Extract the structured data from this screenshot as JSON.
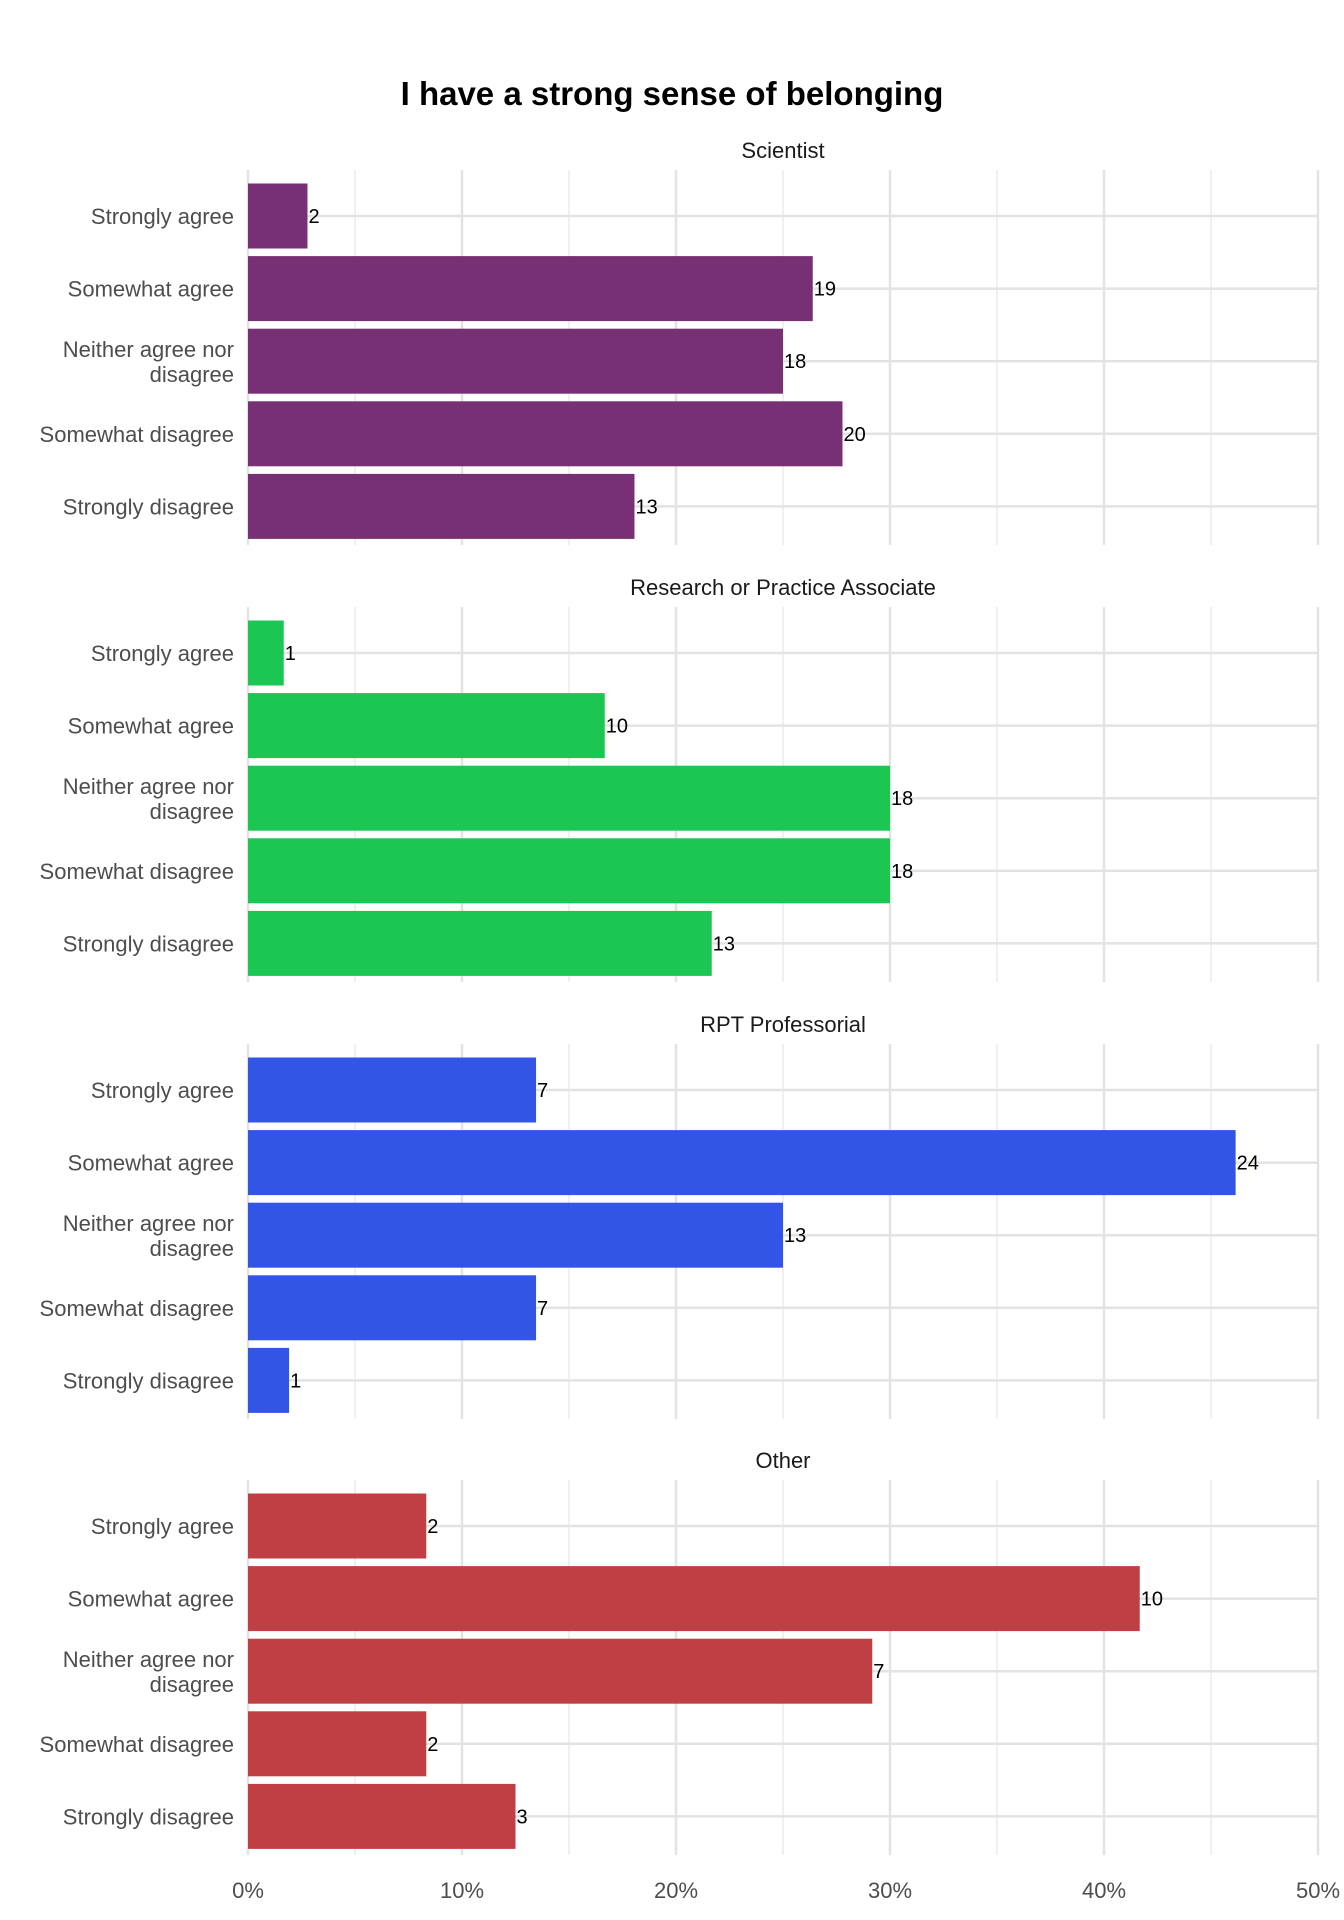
{
  "chart_data": {
    "type": "bar",
    "orientation": "horizontal",
    "title": "I have a strong sense of belonging",
    "categories": [
      "Strongly agree",
      "Somewhat agree",
      "Neither agree nor disagree",
      "Somewhat disagree",
      "Strongly disagree"
    ],
    "xlim": [
      0,
      0.5
    ],
    "x_ticks": [
      0,
      0.1,
      0.2,
      0.3,
      0.4,
      0.5
    ],
    "x_tick_labels": [
      "0%",
      "10%",
      "20%",
      "30%",
      "40%",
      "50%"
    ],
    "grid": true,
    "panels": [
      {
        "name": "Scientist",
        "color": "#773073",
        "counts": [
          2,
          19,
          18,
          20,
          13
        ],
        "values": [
          0.0278,
          0.2639,
          0.25,
          0.2778,
          0.1806
        ]
      },
      {
        "name": "Research or Practice Associate",
        "color": "#1CC653",
        "counts": [
          1,
          10,
          18,
          18,
          13
        ],
        "values": [
          0.0167,
          0.1667,
          0.3,
          0.3,
          0.2167
        ]
      },
      {
        "name": "RPT Professorial",
        "color": "#3355E6",
        "counts": [
          7,
          24,
          13,
          7,
          1
        ],
        "values": [
          0.1346,
          0.4615,
          0.25,
          0.1346,
          0.0192
        ]
      },
      {
        "name": "Other",
        "color": "#C03F45",
        "counts": [
          2,
          10,
          7,
          2,
          3
        ],
        "values": [
          0.0833,
          0.4167,
          0.2917,
          0.0833,
          0.125
        ]
      }
    ]
  }
}
